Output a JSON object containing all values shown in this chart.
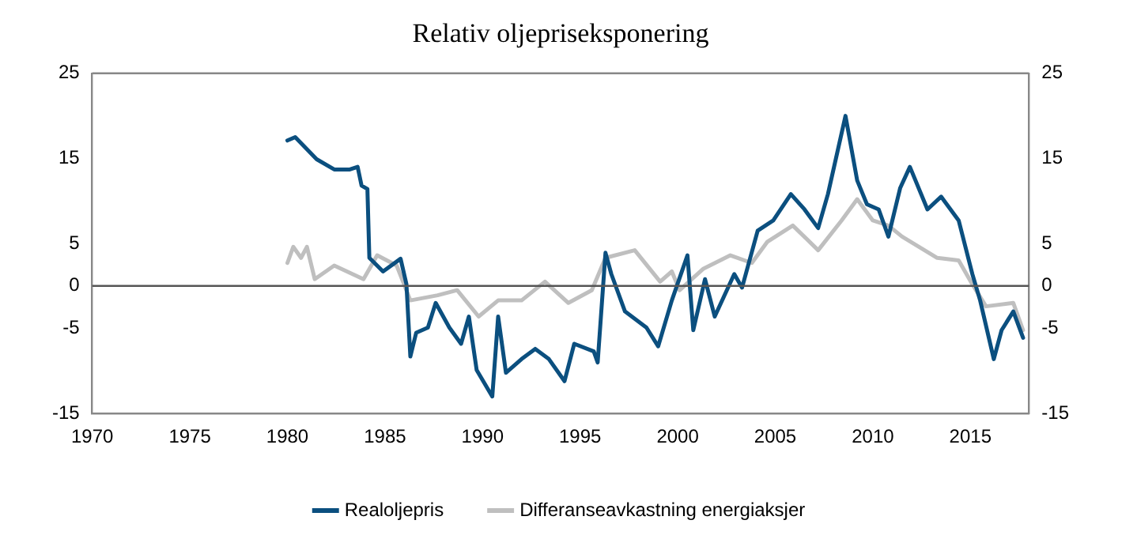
{
  "chart_data": {
    "type": "line",
    "title": "Relativ oljepriseksponering",
    "xlim": [
      1970,
      2018
    ],
    "xticks": [
      1970,
      1975,
      1980,
      1985,
      1990,
      1995,
      2000,
      2005,
      2010,
      2015
    ],
    "ylim": [
      -15,
      25
    ],
    "yticks": [
      -15,
      -5,
      0,
      5,
      15,
      25
    ],
    "y2lim": [
      -15,
      25
    ],
    "y2ticks": [
      -15,
      -5,
      0,
      5,
      15,
      25
    ],
    "grid": false,
    "legend": "bottom",
    "marker": "none",
    "line_style": "solid",
    "ref_lines": [
      {
        "axis": "y",
        "value": 0,
        "color": "#555555"
      }
    ],
    "series": [
      {
        "name": "Realoljepris",
        "color": "#0b4f7f",
        "x": [
          1980.0,
          1980.4,
          1981.5,
          1982.4,
          1983.2,
          1983.6,
          1983.8,
          1984.1,
          1984.2,
          1984.9,
          1985.8,
          1986.1,
          1986.3,
          1986.6,
          1987.2,
          1987.6,
          1988.3,
          1988.9,
          1989.3,
          1989.7,
          1990.5,
          1990.8,
          1991.2,
          1992.0,
          1992.7,
          1993.4,
          1994.2,
          1994.7,
          1995.7,
          1995.9,
          1996.3,
          1996.6,
          1997.3,
          1998.4,
          1999.0,
          1999.7,
          2000.5,
          2000.8,
          2001.4,
          2001.9,
          2002.9,
          2003.3,
          2004.1,
          2004.9,
          2005.8,
          2006.5,
          2007.2,
          2007.7,
          2008.6,
          2009.2,
          2009.7,
          2010.3,
          2010.8,
          2011.4,
          2011.9,
          2012.8,
          2013.5,
          2014.4,
          2015.1,
          2015.5,
          2016.2,
          2016.6,
          2017.2,
          2017.7
        ],
        "values": [
          17.1,
          17.5,
          14.9,
          13.7,
          13.7,
          14,
          11.8,
          11.4,
          3.3,
          1.7,
          3.2,
          0.2,
          -8.3,
          -5.5,
          -4.9,
          -2,
          -4.9,
          -6.8,
          -3.6,
          -9.9,
          -13,
          -3.6,
          -10.2,
          -8.6,
          -7.4,
          -8.6,
          -11.2,
          -6.8,
          -7.7,
          -9,
          3.9,
          1.4,
          -3,
          -4.9,
          -7.1,
          -1.7,
          3.6,
          -5.2,
          0.8,
          -3.6,
          1.4,
          -0.2,
          6.5,
          7.7,
          10.8,
          9,
          6.8,
          10.8,
          20,
          12.4,
          9.6,
          9,
          5.8,
          11.5,
          14,
          9,
          10.5,
          7.7,
          1.4,
          -1.7,
          -8.6,
          -5.2,
          -3,
          -6.1
        ]
      },
      {
        "name": "Differanseavkastning energiaksjer",
        "color": "#bfbfbf",
        "x": [
          1980.0,
          1980.3,
          1980.7,
          1981.0,
          1981.4,
          1982.4,
          1983.9,
          1984.6,
          1985.6,
          1986.3,
          1987.7,
          1988.7,
          1989.8,
          1990.8,
          1992.0,
          1993.2,
          1994.4,
          1995.6,
          1996.3,
          1997.8,
          1999.1,
          1999.7,
          2000.1,
          2001.3,
          2002.7,
          2003.8,
          2004.6,
          2005.9,
          2007.2,
          2008.4,
          2009.2,
          2010.0,
          2010.8,
          2011.5,
          2013.3,
          2014.4,
          2015.1,
          2015.8,
          2017.2,
          2017.7
        ],
        "values": [
          2.7,
          4.6,
          3.3,
          4.6,
          0.8,
          2.4,
          0.8,
          3.6,
          2.4,
          -1.7,
          -1.1,
          -0.5,
          -3.6,
          -1.7,
          -1.7,
          0.5,
          -2,
          -0.5,
          3.3,
          4.2,
          0.5,
          1.7,
          -0.5,
          2,
          3.6,
          2.7,
          5.2,
          7.1,
          4.2,
          7.7,
          10.2,
          7.7,
          7.1,
          5.8,
          3.3,
          3,
          0.2,
          -2.4,
          -2,
          -5.2
        ]
      }
    ]
  }
}
